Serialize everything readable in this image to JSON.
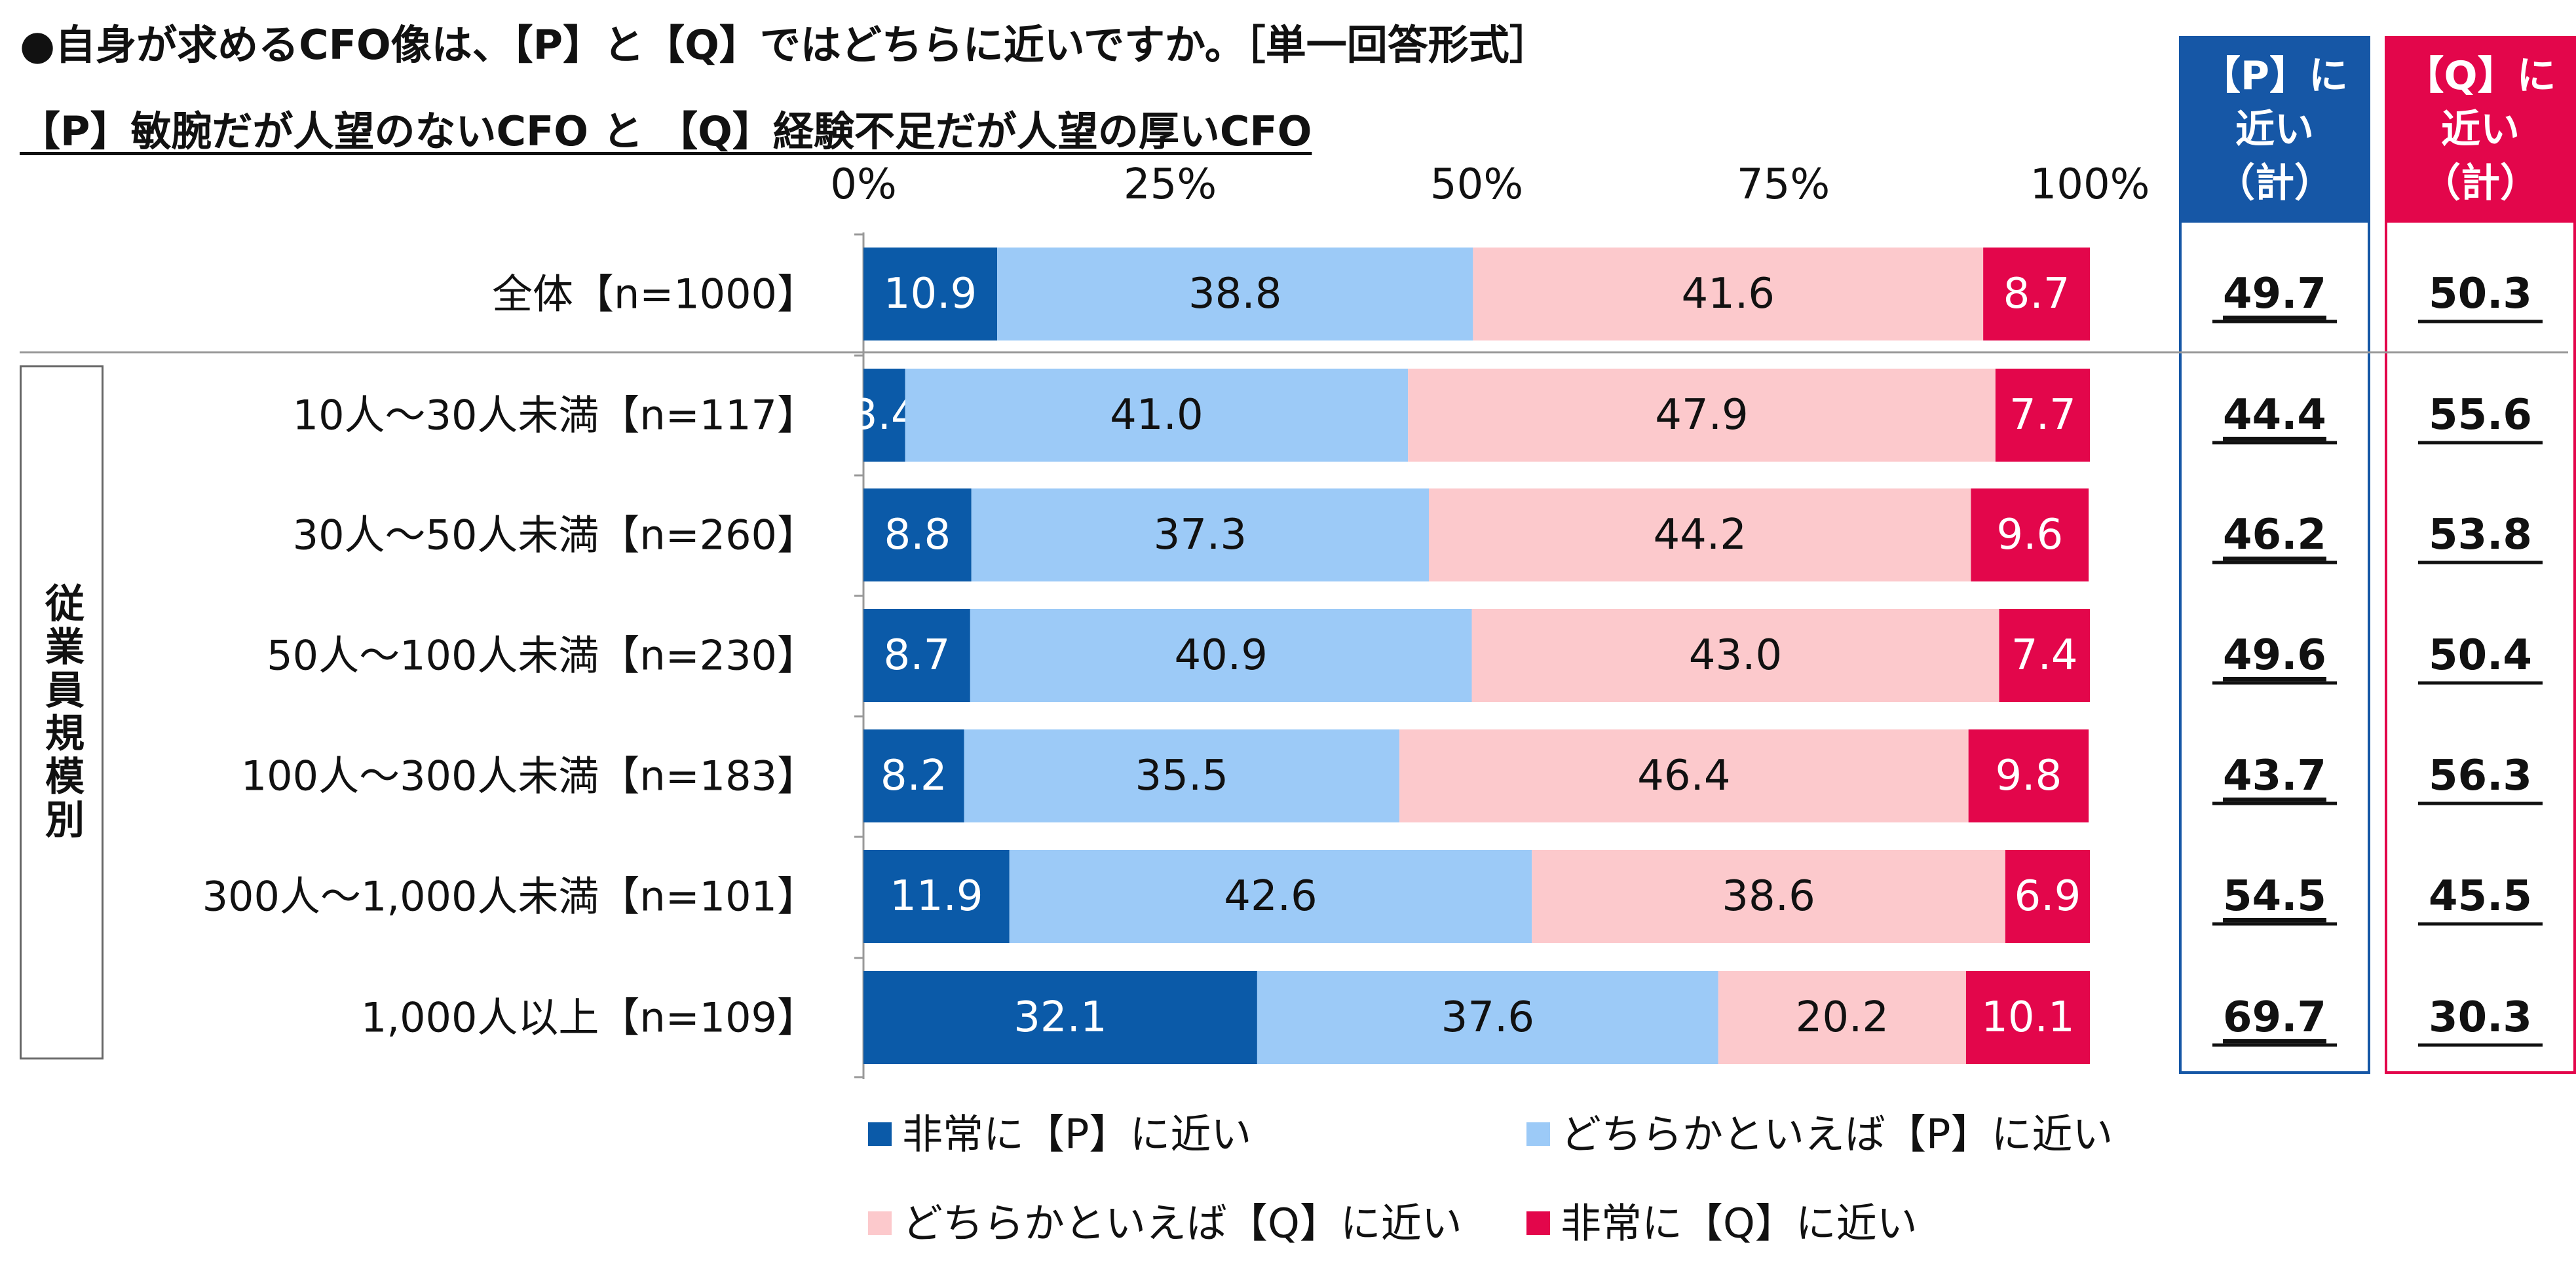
{
  "title_line1": "●自身が求めるCFO像は、【P】と【Q】ではどちらに近いですか。［単一回答形式］",
  "title_line2": "【P】敏腕だが人望のないCFO と 【Q】経験不足だが人望の厚いCFO",
  "group_label": "従業員規模別",
  "sum_headers": {
    "p": [
      "【P】に",
      "近い",
      "（計）"
    ],
    "q": [
      "【Q】に",
      "近い",
      "（計）"
    ]
  },
  "colors": {
    "p_strong": "#0b5aa8",
    "p_mild": "#9ccaf7",
    "q_mild": "#fcc9cc",
    "q_strong": "#e3064b",
    "p_header": "#1657a6",
    "q_header": "#e3064b"
  },
  "chart_data": {
    "type": "bar",
    "orientation": "horizontal-stacked-100",
    "x_ticks": [
      "0%",
      "25%",
      "50%",
      "75%",
      "100%"
    ],
    "xlim": [
      0,
      100
    ],
    "categories": [
      "全体【n=1000】",
      "10人～30人未満【n=117】",
      "30人～50人未満【n=260】",
      "50人～100人未満【n=230】",
      "100人～300人未満【n=183】",
      "300人～1,000人未満【n=101】",
      "1,000人以上【n=109】"
    ],
    "series": [
      {
        "name": "非常に【P】に近い",
        "values": [
          10.9,
          3.4,
          8.8,
          8.7,
          8.2,
          11.9,
          32.1
        ]
      },
      {
        "name": "どちらかといえば【P】に近い",
        "values": [
          38.8,
          41.0,
          37.3,
          40.9,
          35.5,
          42.6,
          37.6
        ]
      },
      {
        "name": "どちらかといえば【Q】に近い",
        "values": [
          41.6,
          47.9,
          44.2,
          43.0,
          46.4,
          38.6,
          20.2
        ]
      },
      {
        "name": "非常に【Q】に近い",
        "values": [
          8.7,
          7.7,
          9.6,
          7.4,
          9.8,
          6.9,
          10.1
        ]
      }
    ],
    "p_total": [
      49.7,
      44.4,
      46.2,
      49.6,
      43.7,
      54.5,
      69.7
    ],
    "q_total": [
      50.3,
      55.6,
      53.8,
      50.4,
      56.3,
      45.5,
      30.3
    ],
    "legend_position": "bottom"
  }
}
